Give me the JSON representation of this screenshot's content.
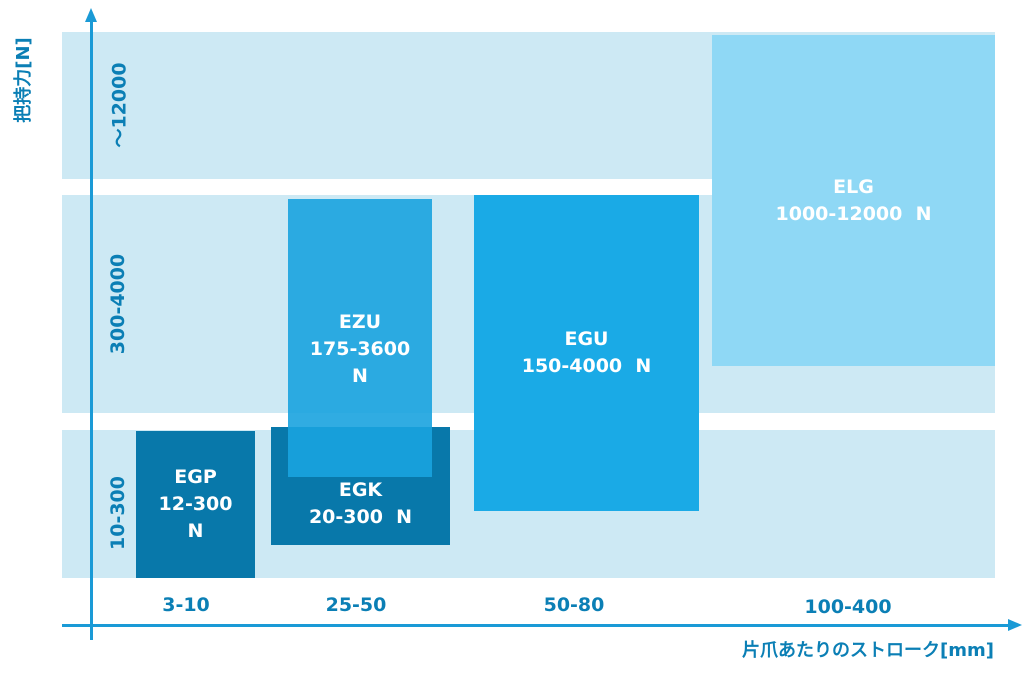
{
  "y_axis": {
    "title": "把持力[N]",
    "bands": [
      {
        "label": "～12000"
      },
      {
        "label": "300-4000"
      },
      {
        "label": "10-300"
      }
    ]
  },
  "x_axis": {
    "title": "片爪あたりのストローク[mm]",
    "categories": [
      "3-10",
      "25-50",
      "50-80",
      "100-400"
    ]
  },
  "products": [
    {
      "id": "egp",
      "name": "EGP",
      "range_lines": [
        "12-300",
        "N"
      ],
      "color": "#0878aa"
    },
    {
      "id": "egk",
      "name": "EGK",
      "range_lines": [
        "20-300  N"
      ],
      "color": "#0878aa"
    },
    {
      "id": "ezu",
      "name": "EZU",
      "range_lines": [
        "175-3600",
        "N"
      ],
      "color": "#1aa3df"
    },
    {
      "id": "egu",
      "name": "EGU",
      "range_lines": [
        "150-4000  N"
      ],
      "color": "#1aaae6"
    },
    {
      "id": "elg",
      "name": "ELG",
      "range_lines": [
        "1000-12000  N"
      ],
      "color": "#8fd8f5"
    }
  ],
  "colors": {
    "band": "#cde9f4",
    "axis": "#1a9ad6",
    "label_text": "#0b7fb5"
  }
}
